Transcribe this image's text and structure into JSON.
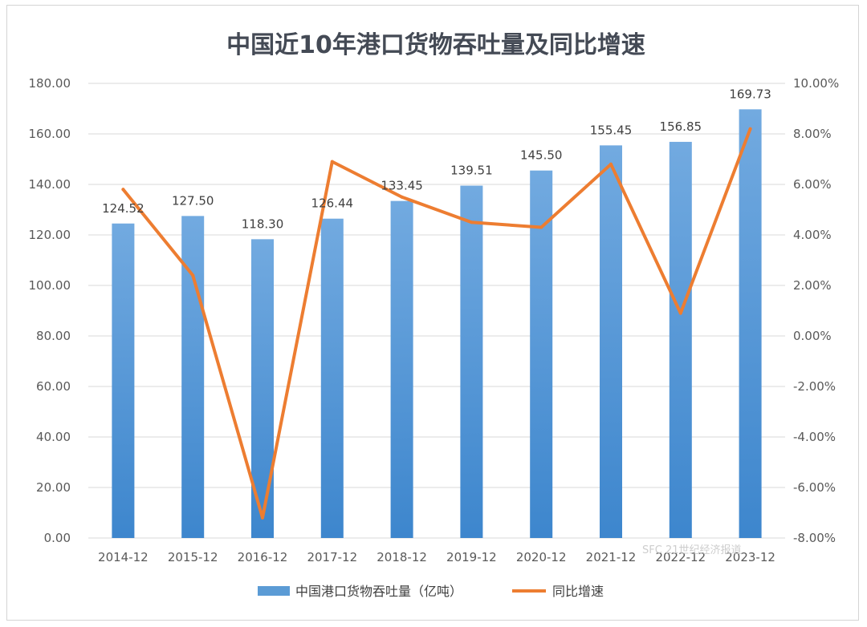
{
  "chart_data": {
    "type": "bar",
    "title": "中国近10年港口货物吞吐量及同比增速",
    "categories": [
      "2014-12",
      "2015-12",
      "2016-12",
      "2017-12",
      "2018-12",
      "2019-12",
      "2020-12",
      "2021-12",
      "2022-12",
      "2023-12"
    ],
    "series": [
      {
        "name": "中国港口货物吞吐量（亿吨）",
        "type": "bar",
        "axis": "left",
        "color": "#5b9bd5",
        "values": [
          124.52,
          127.5,
          118.3,
          126.44,
          133.45,
          139.51,
          145.5,
          155.45,
          156.85,
          169.73
        ],
        "labels": [
          "124.52",
          "127.50",
          "118.30",
          "126.44",
          "133.45",
          "139.51",
          "145.50",
          "155.45",
          "156.85",
          "169.73"
        ]
      },
      {
        "name": "同比增速",
        "type": "line",
        "axis": "right",
        "color": "#ed7d31",
        "values": [
          5.8,
          2.4,
          -7.2,
          6.9,
          5.5,
          4.5,
          4.3,
          6.8,
          0.9,
          8.2
        ]
      }
    ],
    "y_left": {
      "range": [
        0,
        180
      ],
      "ticks": [
        0,
        20,
        40,
        60,
        80,
        100,
        120,
        140,
        160,
        180
      ],
      "tick_labels": [
        "0.00",
        "20.00",
        "40.00",
        "60.00",
        "80.00",
        "100.00",
        "120.00",
        "140.00",
        "160.00",
        "180.00"
      ]
    },
    "y_right": {
      "range": [
        -8,
        10
      ],
      "ticks": [
        -8,
        -6,
        -4,
        -2,
        0,
        2,
        4,
        6,
        8,
        10
      ],
      "tick_labels": [
        "-8.00%",
        "-6.00%",
        "-4.00%",
        "-2.00%",
        "0.00%",
        "2.00%",
        "4.00%",
        "6.00%",
        "8.00%",
        "10.00%"
      ]
    },
    "grid": true,
    "legend_position": "bottom",
    "watermark": "SFC 21世纪经济报道"
  }
}
